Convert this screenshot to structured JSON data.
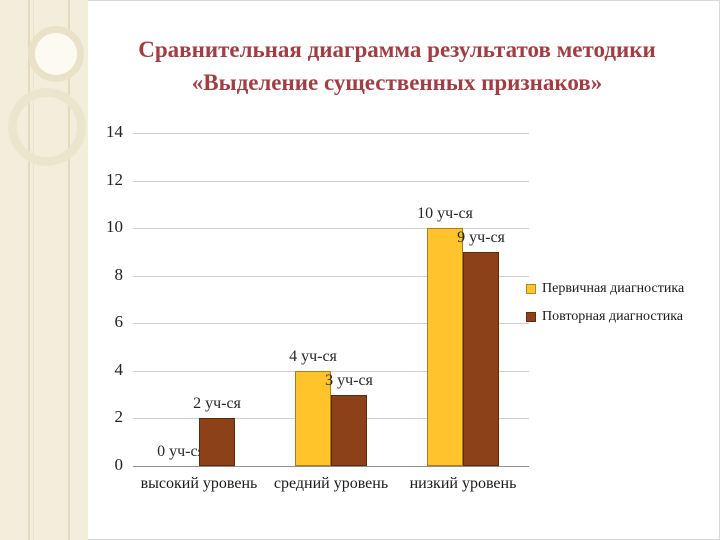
{
  "title": {
    "line1": "Сравнительная диаграмма результатов методики",
    "line2": "«Выделение существенных признаков»",
    "color": "#A03E44"
  },
  "chart_data": {
    "type": "bar",
    "title": "Сравнительная диаграмма результатов методики «Выделение существенных признаков»",
    "categories": [
      "высокий уровень",
      "средний уровень",
      "низкий уровень"
    ],
    "series": [
      {
        "name": "Первичная диагностика",
        "color": "#FFC32B",
        "values": [
          0,
          4,
          10
        ],
        "data_labels": [
          "0 уч-ся",
          "4 уч-ся",
          "10 уч-ся"
        ]
      },
      {
        "name": "Повторная диагностика",
        "color": "#8C4118",
        "values": [
          2,
          3,
          9
        ],
        "data_labels": [
          "2 уч-ся",
          "3 уч-ся",
          "9 уч-ся"
        ]
      }
    ],
    "ylim": [
      0,
      14
    ],
    "ytick_step": 2,
    "yticks": [
      0,
      2,
      4,
      6,
      8,
      10,
      12,
      14
    ],
    "grid": true,
    "legend_position": "right"
  }
}
